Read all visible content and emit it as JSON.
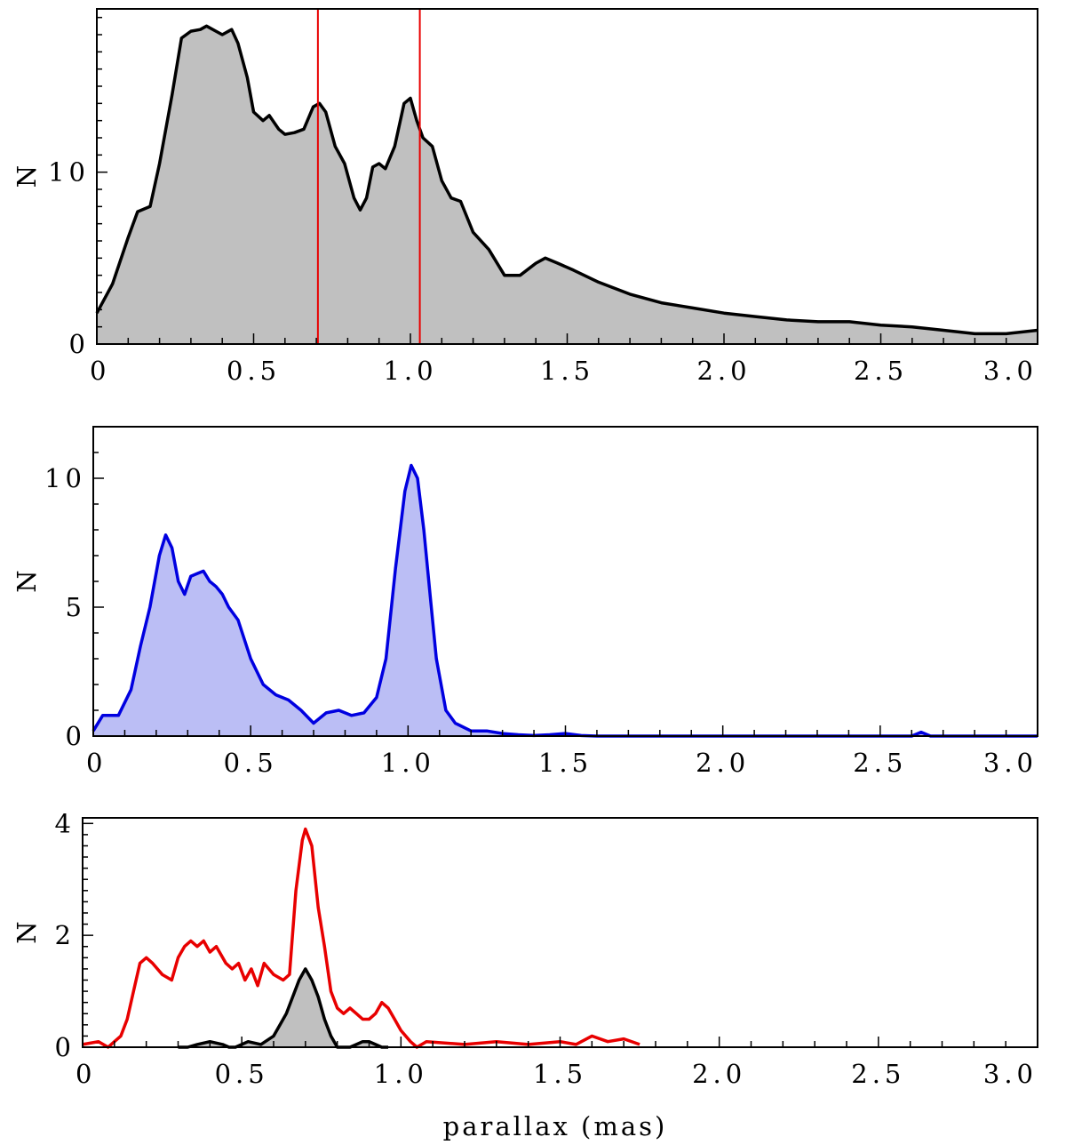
{
  "figure": {
    "xlabel": "parallax (mas)"
  },
  "colors": {
    "black": "#000000",
    "gray_fill": "#c0c0c0",
    "blue": "#0000e0",
    "blue_fill": "#bbbef5",
    "red": "#e80000"
  },
  "chart_data": [
    {
      "type": "area",
      "panel": "top",
      "xlabel": "",
      "ylabel": "N",
      "xlim": [
        0,
        3.0
      ],
      "ylim": [
        0,
        19.5
      ],
      "x_ticks": [
        0,
        0.5,
        1.0,
        1.5,
        2.0,
        2.5,
        3.0
      ],
      "x_tick_labels": [
        "0",
        "0.5",
        "1.0",
        "1.5",
        "2.0",
        "2.5",
        "3.0"
      ],
      "y_ticks": [
        0,
        10
      ],
      "y_tick_labels": [
        "0",
        "10"
      ],
      "grid": false,
      "vertical_lines": [
        0.705,
        1.03
      ],
      "series": [
        {
          "color": "black",
          "fill": "gray_fill",
          "x": [
            0,
            0.05,
            0.1,
            0.13,
            0.17,
            0.2,
            0.24,
            0.27,
            0.3,
            0.33,
            0.35,
            0.38,
            0.4,
            0.43,
            0.45,
            0.48,
            0.5,
            0.53,
            0.55,
            0.58,
            0.6,
            0.63,
            0.66,
            0.69,
            0.71,
            0.73,
            0.76,
            0.79,
            0.82,
            0.84,
            0.86,
            0.88,
            0.9,
            0.92,
            0.95,
            0.98,
            1.0,
            1.02,
            1.04,
            1.07,
            1.1,
            1.13,
            1.16,
            1.2,
            1.25,
            1.3,
            1.35,
            1.4,
            1.43,
            1.47,
            1.52,
            1.6,
            1.7,
            1.8,
            1.9,
            2.0,
            2.1,
            2.2,
            2.3,
            2.4,
            2.5,
            2.6,
            2.7,
            2.8,
            2.9,
            3.0
          ],
          "y": [
            1.8,
            3.5,
            6.2,
            7.7,
            8.0,
            10.5,
            14.5,
            17.8,
            18.2,
            18.3,
            18.5,
            18.2,
            18.0,
            18.3,
            17.5,
            15.5,
            13.5,
            13.0,
            13.3,
            12.5,
            12.2,
            12.3,
            12.5,
            13.8,
            14.0,
            13.5,
            11.5,
            10.5,
            8.5,
            7.8,
            8.5,
            10.3,
            10.5,
            10.2,
            11.5,
            14.0,
            14.3,
            13.0,
            12.0,
            11.5,
            9.5,
            8.5,
            8.3,
            6.5,
            5.5,
            4.0,
            4.0,
            4.7,
            5.0,
            4.7,
            4.3,
            3.6,
            2.9,
            2.4,
            2.1,
            1.8,
            1.6,
            1.4,
            1.3,
            1.3,
            1.1,
            1.0,
            0.8,
            0.6,
            0.6,
            0.8
          ]
        }
      ]
    },
    {
      "type": "area",
      "panel": "middle",
      "xlabel": "",
      "ylabel": "N",
      "xlim": [
        0,
        3.0
      ],
      "ylim": [
        0,
        12
      ],
      "x_ticks": [
        0,
        0.5,
        1.0,
        1.5,
        2.0,
        2.5,
        3.0
      ],
      "x_tick_labels": [
        "0",
        "0.5",
        "1.0",
        "1.5",
        "2.0",
        "2.5",
        "3.0"
      ],
      "y_ticks": [
        0,
        5,
        10
      ],
      "y_tick_labels": [
        "0",
        "5",
        "10"
      ],
      "grid": false,
      "series": [
        {
          "color": "blue",
          "fill": "blue_fill",
          "x": [
            0,
            0.03,
            0.08,
            0.12,
            0.15,
            0.18,
            0.21,
            0.23,
            0.25,
            0.27,
            0.29,
            0.31,
            0.33,
            0.35,
            0.37,
            0.39,
            0.41,
            0.43,
            0.46,
            0.5,
            0.54,
            0.58,
            0.62,
            0.66,
            0.7,
            0.74,
            0.78,
            0.82,
            0.86,
            0.9,
            0.93,
            0.96,
            0.99,
            1.01,
            1.03,
            1.05,
            1.07,
            1.09,
            1.12,
            1.15,
            1.2,
            1.25,
            1.3,
            1.35,
            1.4,
            1.45,
            1.5,
            1.55,
            1.6,
            2.0,
            2.5,
            2.6,
            2.63,
            2.66,
            3.0
          ],
          "y": [
            0.2,
            0.8,
            0.8,
            1.8,
            3.5,
            5.0,
            7.0,
            7.8,
            7.3,
            6.0,
            5.5,
            6.2,
            6.3,
            6.4,
            6.0,
            5.8,
            5.5,
            5.0,
            4.5,
            3.0,
            2.0,
            1.6,
            1.4,
            1.0,
            0.5,
            0.9,
            1.0,
            0.8,
            0.9,
            1.5,
            3.0,
            6.5,
            9.5,
            10.5,
            10.0,
            8.0,
            5.5,
            3.0,
            1.0,
            0.5,
            0.2,
            0.2,
            0.1,
            0.05,
            0.02,
            0.05,
            0.1,
            0.02,
            0.0,
            0.0,
            0.0,
            0.0,
            0.15,
            0.0,
            0.0
          ]
        }
      ]
    },
    {
      "type": "line",
      "panel": "bottom",
      "xlabel": "parallax (mas)",
      "ylabel": "N",
      "xlim": [
        0,
        3.0
      ],
      "ylim": [
        0,
        4.1
      ],
      "x_ticks": [
        0,
        0.5,
        1.0,
        1.5,
        2.0,
        2.5,
        3.0
      ],
      "x_tick_labels": [
        "0",
        "0.5",
        "1.0",
        "1.5",
        "2.0",
        "2.5",
        "3.0"
      ],
      "y_ticks": [
        0,
        2,
        4
      ],
      "y_tick_labels": [
        "0",
        "2",
        "4"
      ],
      "grid": false,
      "series": [
        {
          "color": "red",
          "fill": "none",
          "x": [
            0,
            0.05,
            0.08,
            0.1,
            0.12,
            0.14,
            0.16,
            0.18,
            0.2,
            0.22,
            0.25,
            0.28,
            0.3,
            0.32,
            0.34,
            0.36,
            0.38,
            0.4,
            0.42,
            0.45,
            0.47,
            0.49,
            0.51,
            0.53,
            0.55,
            0.57,
            0.6,
            0.63,
            0.65,
            0.67,
            0.69,
            0.7,
            0.72,
            0.74,
            0.76,
            0.78,
            0.8,
            0.82,
            0.84,
            0.86,
            0.88,
            0.9,
            0.92,
            0.94,
            0.96,
            0.98,
            1.0,
            1.03,
            1.05,
            1.08,
            1.2,
            1.3,
            1.4,
            1.5,
            1.55,
            1.6,
            1.65,
            1.7,
            1.75
          ],
          "y": [
            0.05,
            0.1,
            0.0,
            0.1,
            0.2,
            0.5,
            1.0,
            1.5,
            1.6,
            1.5,
            1.3,
            1.2,
            1.6,
            1.8,
            1.9,
            1.8,
            1.9,
            1.7,
            1.8,
            1.5,
            1.4,
            1.5,
            1.2,
            1.4,
            1.1,
            1.5,
            1.3,
            1.2,
            1.3,
            2.8,
            3.7,
            3.9,
            3.6,
            2.5,
            1.8,
            1.0,
            0.7,
            0.6,
            0.7,
            0.6,
            0.5,
            0.5,
            0.6,
            0.8,
            0.7,
            0.5,
            0.3,
            0.1,
            0.0,
            0.1,
            0.05,
            0.1,
            0.05,
            0.1,
            0.05,
            0.2,
            0.1,
            0.15,
            0.05
          ]
        },
        {
          "color": "black",
          "fill": "gray_fill",
          "x": [
            0.3,
            0.33,
            0.36,
            0.4,
            0.44,
            0.46,
            0.48,
            0.52,
            0.56,
            0.6,
            0.62,
            0.64,
            0.66,
            0.68,
            0.7,
            0.72,
            0.74,
            0.76,
            0.78,
            0.8,
            0.82,
            0.84,
            0.86,
            0.88,
            0.9,
            0.92,
            0.94,
            0.96
          ],
          "y": [
            0.0,
            0.0,
            0.05,
            0.1,
            0.05,
            0.0,
            0.0,
            0.1,
            0.05,
            0.2,
            0.4,
            0.6,
            0.9,
            1.2,
            1.4,
            1.2,
            0.9,
            0.5,
            0.2,
            0.0,
            0.0,
            0.0,
            0.05,
            0.1,
            0.1,
            0.05,
            0.0,
            0.0
          ]
        }
      ]
    }
  ]
}
